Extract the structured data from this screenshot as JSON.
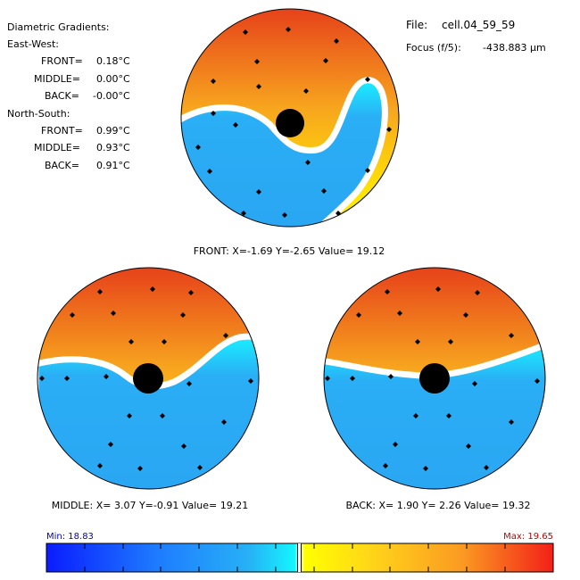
{
  "gradients": {
    "title": "Diametric Gradients:",
    "east_west": {
      "heading": "East-West:",
      "front_label": "FRONT=",
      "front_value": "0.18°C",
      "middle_label": "MIDDLE=",
      "middle_value": "0.00°C",
      "back_label": "BACK=",
      "back_value": "-0.00°C"
    },
    "north_south": {
      "heading": "North-South:",
      "front_label": "FRONT=",
      "front_value": "0.99°C",
      "middle_label": "MIDDLE=",
      "middle_value": "0.93°C",
      "back_label": "BACK=",
      "back_value": "0.91°C"
    }
  },
  "file": {
    "label": "File:",
    "name": "cell.04_59_59",
    "focus_label": "Focus (f/5):",
    "focus_value": "-438.883 μm"
  },
  "plots": [
    {
      "id": "front",
      "caption": "FRONT: X=-1.69  Y=-2.65  Value= 19.12"
    },
    {
      "id": "middle",
      "caption": "MIDDLE: X= 3.07  Y=-0.91  Value= 19.21"
    },
    {
      "id": "back",
      "caption": "BACK: X= 1.90  Y= 2.26  Value= 19.32"
    }
  ],
  "colorbar": {
    "min_label": "Min: 18.83",
    "max_label": "Max: 19.65",
    "min": 18.83,
    "max": 19.65
  },
  "colors": {
    "warm_top": "#e6401a",
    "warm_mid": "#f7a51e",
    "warm_low": "#ffe800",
    "cool": "#2aaef5",
    "cool_edge": "#19f0ff",
    "isotherm": "#ffffff",
    "min_text": "#0000c0",
    "max_text": "#c00000"
  }
}
